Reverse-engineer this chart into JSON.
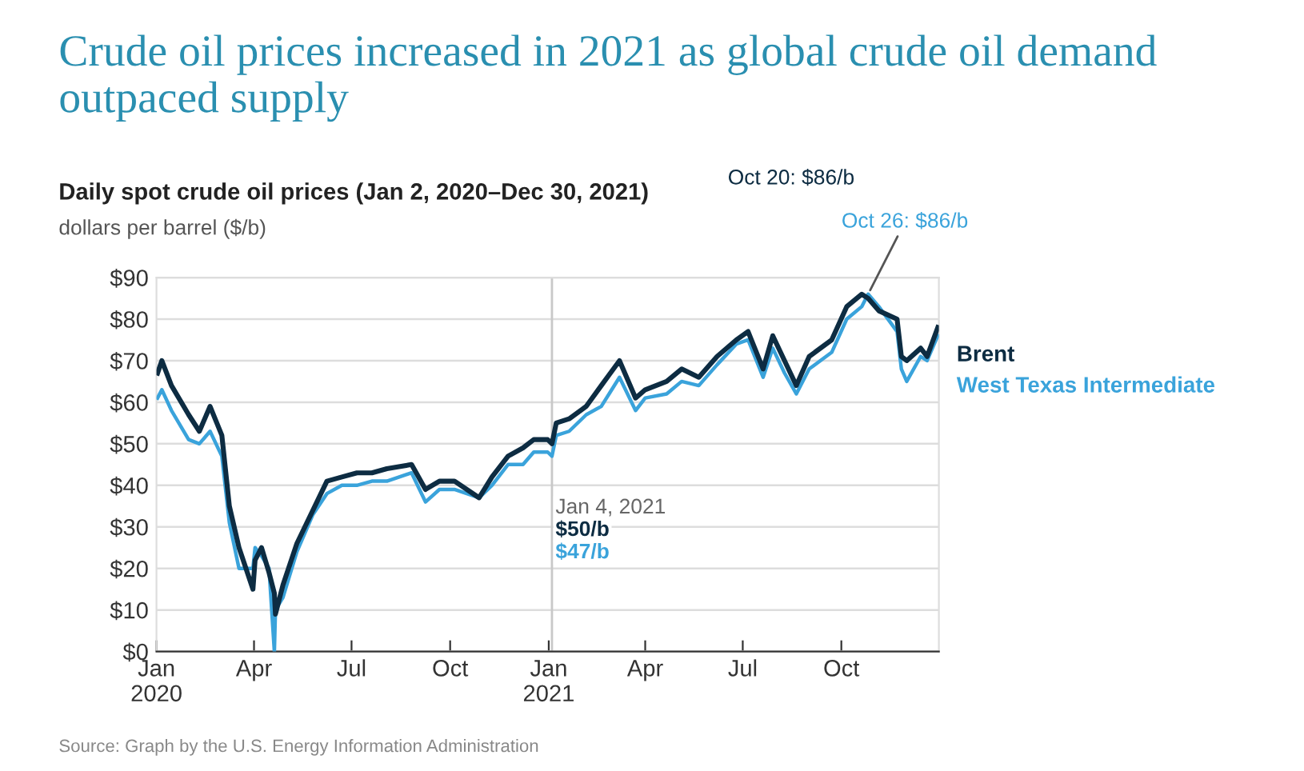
{
  "chart_data": {
    "type": "line",
    "title": "Crude oil prices increased in 2021 as global crude oil demand outpaced supply",
    "subtitle": "Daily spot crude oil prices (Jan 2, 2020–Dec 30, 2021)",
    "ylabel": "dollars per barrel ($/b)",
    "x": [
      "2020-01-02",
      "2020-01-06",
      "2020-01-15",
      "2020-01-31",
      "2020-02-10",
      "2020-02-20",
      "2020-03-02",
      "2020-03-09",
      "2020-03-18",
      "2020-03-31",
      "2020-04-02",
      "2020-04-08",
      "2020-04-15",
      "2020-04-20",
      "2020-04-21",
      "2020-04-28",
      "2020-05-11",
      "2020-05-26",
      "2020-06-08",
      "2020-06-22",
      "2020-07-06",
      "2020-07-20",
      "2020-08-03",
      "2020-08-26",
      "2020-09-08",
      "2020-09-21",
      "2020-10-05",
      "2020-10-28",
      "2020-11-09",
      "2020-11-24",
      "2020-12-08",
      "2020-12-18",
      "2020-12-31",
      "2021-01-04",
      "2021-01-08",
      "2021-01-20",
      "2021-02-05",
      "2021-02-19",
      "2021-03-08",
      "2021-03-23",
      "2021-04-01",
      "2021-04-21",
      "2021-05-05",
      "2021-05-21",
      "2021-06-07",
      "2021-06-25",
      "2021-07-06",
      "2021-07-20",
      "2021-07-29",
      "2021-08-09",
      "2021-08-20",
      "2021-09-01",
      "2021-09-22",
      "2021-10-06",
      "2021-10-20",
      "2021-10-26",
      "2021-11-05",
      "2021-11-22",
      "2021-11-26",
      "2021-12-01",
      "2021-12-14",
      "2021-12-20",
      "2021-12-30"
    ],
    "series": [
      {
        "name": "Brent",
        "color": "#0d2c42",
        "values": [
          67,
          70,
          64,
          57,
          53,
          59,
          52,
          35,
          25,
          15,
          22,
          25,
          19,
          14,
          9,
          16,
          26,
          34,
          41,
          42,
          43,
          43,
          44,
          45,
          39,
          41,
          41,
          37,
          42,
          47,
          49,
          51,
          51,
          50,
          55,
          56,
          59,
          64,
          70,
          61,
          63,
          65,
          68,
          66,
          71,
          75,
          77,
          68,
          76,
          70,
          64,
          71,
          75,
          83,
          86,
          85,
          82,
          80,
          71,
          70,
          73,
          71,
          78
        ]
      },
      {
        "name": "West Texas Intermediate",
        "color": "#3aa3db",
        "values": [
          61,
          63,
          58,
          51,
          50,
          53,
          47,
          31,
          20,
          20,
          25,
          23,
          20,
          0,
          10,
          13,
          24,
          33,
          38,
          40,
          40,
          41,
          41,
          43,
          36,
          39,
          39,
          37,
          40,
          45,
          45,
          48,
          48,
          47,
          52,
          53,
          57,
          59,
          66,
          58,
          61,
          62,
          65,
          64,
          69,
          74,
          75,
          66,
          73,
          67,
          62,
          68,
          72,
          80,
          83,
          86,
          83,
          77,
          68,
          65,
          71,
          70,
          76
        ]
      }
    ],
    "xlim": [
      "2020-01-01",
      "2021-12-31"
    ],
    "xticks": [
      {
        "value": "2020-01-01",
        "label": "Jan\n2020"
      },
      {
        "value": "2020-04-01",
        "label": "Apr"
      },
      {
        "value": "2020-07-01",
        "label": "Jul"
      },
      {
        "value": "2020-10-01",
        "label": "Oct"
      },
      {
        "value": "2021-01-01",
        "label": "Jan\n2021"
      },
      {
        "value": "2021-04-01",
        "label": "Apr"
      },
      {
        "value": "2021-07-01",
        "label": "Jul"
      },
      {
        "value": "2021-10-01",
        "label": "Oct"
      }
    ],
    "ylim": [
      0,
      90
    ],
    "yticks": [
      {
        "value": 0,
        "label": "$0"
      },
      {
        "value": 10,
        "label": "$10"
      },
      {
        "value": 20,
        "label": "$20"
      },
      {
        "value": 30,
        "label": "$30"
      },
      {
        "value": 40,
        "label": "$40"
      },
      {
        "value": 50,
        "label": "$50"
      },
      {
        "value": 60,
        "label": "$60"
      },
      {
        "value": 70,
        "label": "$70"
      },
      {
        "value": 80,
        "label": "$80"
      },
      {
        "value": 90,
        "label": "$90"
      }
    ],
    "grid": "y",
    "line_style": "solid",
    "marker": "none",
    "ref_lines": [
      {
        "axis": "x",
        "value": "2021-01-04",
        "color": "#c8c8c8"
      }
    ],
    "annotations": [
      "Jan 4, 2021",
      "$50/b",
      "$47/b",
      "Oct 20: $86/b",
      {
        "text": "Oct 26: $86/b",
        "x": "2021-10-26",
        "y": 86
      },
      "Source: Graph by the U.S. Energy Information Administration"
    ]
  }
}
